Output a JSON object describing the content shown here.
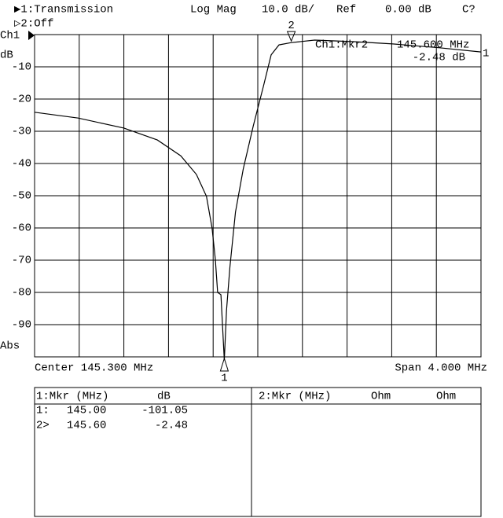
{
  "header": {
    "channel1": "▶1:Transmission",
    "format": "Log Mag",
    "scale": "10.0 dB/",
    "ref_label": "Ref",
    "ref_value": "0.00 dB",
    "status": "C?",
    "channel2": "▷2:Off",
    "channel": "Ch1",
    "unit": "dB",
    "mode": "Abs"
  },
  "chart_data": {
    "type": "line",
    "x": [
      143.3,
      143.69,
      144.1,
      144.4,
      144.61,
      144.75,
      144.84,
      144.89,
      144.92,
      144.94,
      144.97,
      145.0,
      145.02,
      145.05,
      145.1,
      145.17,
      145.26,
      145.35,
      145.42,
      145.49,
      145.6,
      145.81,
      146.16,
      146.51,
      146.93,
      147.3
    ],
    "series": [
      {
        "name": "Ch1",
        "color": "#000000",
        "values": [
          -24.1,
          -25.9,
          -29,
          -32.7,
          -37.6,
          -43.4,
          -50.2,
          -60,
          -69.8,
          -80,
          -80.7,
          -101.05,
          -85.6,
          -72.2,
          -55.1,
          -41.7,
          -28.3,
          -16.1,
          -6.3,
          -3.2,
          -2.48,
          -1.7,
          -2.2,
          -2.9,
          -4.1,
          -5.4
        ]
      }
    ],
    "xlim": [
      143.3,
      147.3
    ],
    "ylim": [
      -100,
      0
    ],
    "xticks": [
      143.7,
      144.1,
      144.5,
      144.9,
      145.3,
      145.7,
      146.1,
      146.5,
      146.9
    ],
    "yticks": [
      -10,
      -20,
      -30,
      -40,
      -50,
      -60,
      -70,
      -80,
      -90
    ],
    "grid": true,
    "x_start_label": "Center 145.300 MHz",
    "x_span_label": "Span 4.000 MHz",
    "trace_label": "1",
    "markers": [
      {
        "label": "1",
        "x": 145.0,
        "y": -101.05
      },
      {
        "label": "2",
        "x": 145.6,
        "y": -2.48
      }
    ],
    "marker_readout": {
      "name": "Ch1:Mkr2",
      "freq": "145.600 MHz",
      "value": "-2.48 dB"
    }
  },
  "marker_table": {
    "headers": [
      "1:Mkr (MHz)",
      "dB",
      "2:Mkr (MHz)",
      "Ohm",
      "Ohm"
    ],
    "rows": [
      [
        "1:",
        "145.00",
        "-101.05"
      ],
      [
        "2>",
        "145.60",
        "-2.48"
      ]
    ]
  }
}
